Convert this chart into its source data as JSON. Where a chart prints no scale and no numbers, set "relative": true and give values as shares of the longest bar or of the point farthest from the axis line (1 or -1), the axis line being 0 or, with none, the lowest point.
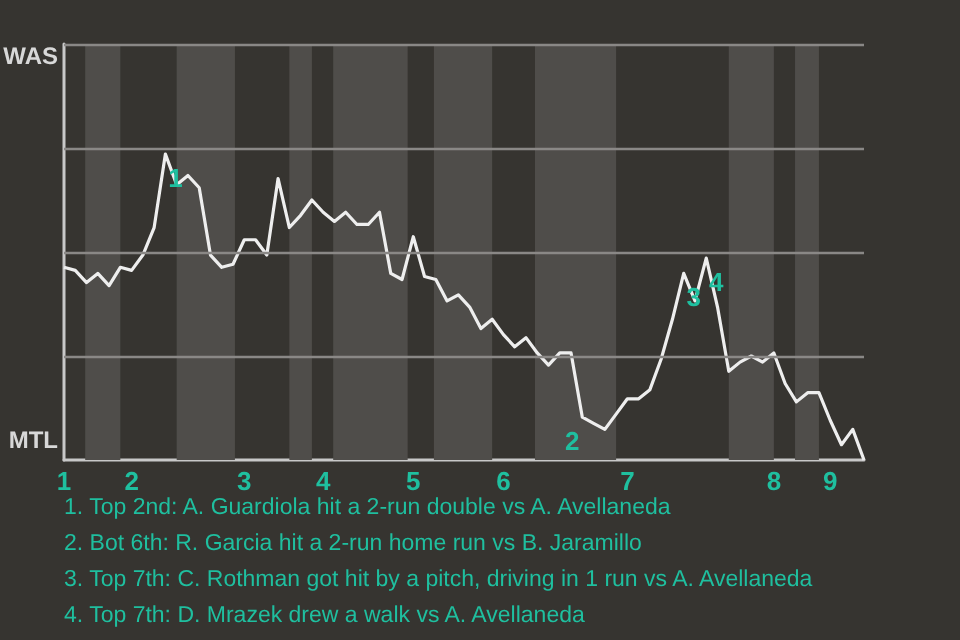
{
  "chart_data": {
    "type": "line",
    "categories": [
      "1",
      null,
      null,
      null,
      null,
      null,
      "2",
      null,
      null,
      null,
      null,
      null,
      null,
      null,
      null,
      null,
      "3",
      null,
      null,
      null,
      null,
      null,
      null,
      "4",
      null,
      null,
      null,
      null,
      null,
      null,
      null,
      "5",
      null,
      null,
      null,
      null,
      null,
      null,
      null,
      "6",
      null,
      null,
      null,
      null,
      null,
      null,
      null,
      null,
      null,
      null,
      "7",
      null,
      null,
      null,
      null,
      null,
      null,
      null,
      null,
      null,
      null,
      null,
      null,
      "8",
      null,
      null,
      null,
      null,
      "9",
      null,
      null,
      null
    ],
    "relative": true,
    "series": [
      {
        "color": "#eeeeee",
        "values": [
          0.63,
          0.62,
          0.58,
          0.61,
          0.57,
          0.63,
          0.62,
          0.67,
          0.76,
          1,
          0.9,
          0.93,
          0.89,
          0.67,
          0.63,
          0.64,
          0.72,
          0.72,
          0.67,
          0.92,
          0.76,
          0.8,
          0.85,
          0.81,
          0.78,
          0.81,
          0.77,
          0.77,
          0.81,
          0.61,
          0.59,
          0.73,
          0.6,
          0.59,
          0.52,
          0.54,
          0.5,
          0.43,
          0.46,
          0.41,
          0.37,
          0.4,
          0.35,
          0.31,
          0.35,
          0.35,
          0.14,
          0.12,
          0.1,
          0.15,
          0.2,
          0.2,
          0.23,
          0.33,
          0.46,
          0.61,
          0.52,
          0.66,
          0.5,
          0.29,
          0.32,
          0.34,
          0.32,
          0.35,
          0.25,
          0.19,
          0.22,
          0.22,
          0.13,
          0.05,
          0.1,
          0
        ]
      }
    ],
    "ref_lines": [
      {
        "axis": "y",
        "value": 0.34,
        "color": "#8a8886"
      },
      {
        "axis": "y",
        "value": 0.68,
        "color": "#8a8886"
      },
      {
        "axis": "y",
        "value": 1.02,
        "color": "#8a8886"
      },
      {
        "axis": "y",
        "value": 1.36,
        "color": "#8a8886"
      }
    ],
    "annotations": [
      "WAS",
      "MTL",
      {
        "text": "1",
        "y": 1
      },
      {
        "text": "2",
        "y": 0.14
      },
      {
        "text": "3",
        "y": 0.61
      },
      {
        "text": "4",
        "y": 0.66
      },
      "1. Top 2nd: A. Guardiola hit a 2-run double vs A. Avellaneda",
      "2. Bot 6th: R. Garcia hit a 2-run home run vs B. Jaramillo",
      "3. Top 7th: C. Rothman got hit by a pitch, driving in 1 run vs A. Avellaneda",
      "4. Top 7th: D. Mrazek drew a walk vs A. Avellaneda"
    ]
  }
}
